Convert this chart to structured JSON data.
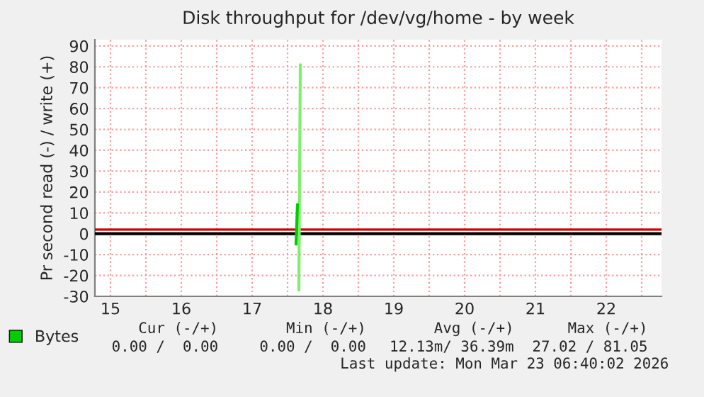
{
  "chart_data": {
    "type": "line",
    "title": "Disk throughput for /dev/vg/home - by week",
    "ylabel": "Pr second read (-) / write (+)",
    "xlim": [
      14.78,
      22.78
    ],
    "ylim": [
      -30,
      93
    ],
    "xticks": [
      {
        "value": 15,
        "label": "15"
      },
      {
        "value": 16,
        "label": "16"
      },
      {
        "value": 17,
        "label": "17"
      },
      {
        "value": 18,
        "label": "18"
      },
      {
        "value": 19,
        "label": "19"
      },
      {
        "value": 20,
        "label": "20"
      },
      {
        "value": 21,
        "label": "21"
      },
      {
        "value": 22,
        "label": "22"
      },
      {
        "value": 15.5,
        "label": null
      },
      {
        "value": 16.5,
        "label": null
      },
      {
        "value": 17.5,
        "label": null
      },
      {
        "value": 18.5,
        "label": null
      },
      {
        "value": 19.5,
        "label": null
      },
      {
        "value": 20.5,
        "label": null
      },
      {
        "value": 21.5,
        "label": null
      },
      {
        "value": 22.5,
        "label": null
      }
    ],
    "yticks": [
      -30,
      -20,
      -10,
      0,
      10,
      20,
      30,
      40,
      50,
      60,
      70,
      80,
      90
    ],
    "grid": true,
    "legend": "bottom",
    "series": [
      {
        "color": "#7cf06c",
        "x": [
          17.66,
          17.68
        ],
        "values": [
          -27,
          81
        ]
      },
      {
        "name": "Bytes",
        "color": "#00cc00",
        "x": [
          17.62,
          17.64
        ],
        "values": [
          -5,
          14
        ]
      }
    ],
    "ref_lines": [
      {
        "axis": "y",
        "value": 0,
        "color": "#000000"
      },
      {
        "axis": "y",
        "value": 2,
        "color": "#cc0000"
      }
    ],
    "annotations": [
      "Cur (-/+)",
      "Min (-/+)",
      "Avg (-/+)",
      "Max (-/+)",
      "0.00 /  0.00",
      "0.00 /  0.00",
      "12.13m/ 36.39m",
      "27.02 / 81.05",
      "Last update: Mon Mar 23 06:40:02 2026"
    ]
  }
}
